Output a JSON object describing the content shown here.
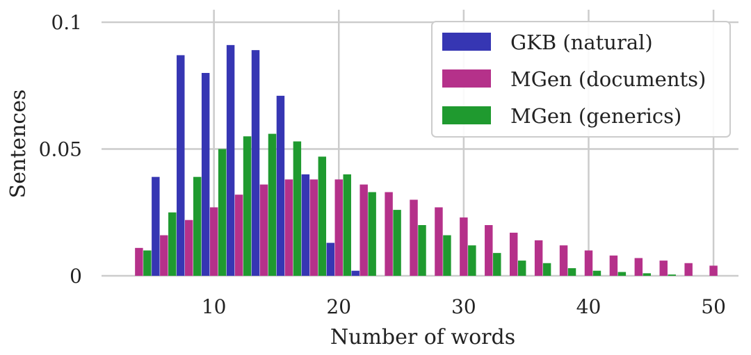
{
  "chart_data": {
    "type": "bar",
    "xlabel": "Number of words",
    "ylabel": "Sentences",
    "xlim": [
      1,
      52
    ],
    "ylim": [
      0,
      0.1
    ],
    "xticks": [
      10,
      20,
      30,
      40,
      50
    ],
    "xtick_labels": [
      "10",
      "20",
      "30",
      "40",
      "50"
    ],
    "yticks": [
      0,
      0.05,
      0.1
    ],
    "ytick_labels": [
      "0",
      "0.05",
      "0.1"
    ],
    "grid": true,
    "legend_position": "top-right",
    "bin_width": 2,
    "bin_starts": [
      3,
      5,
      7,
      9,
      11,
      13,
      15,
      17,
      19,
      21,
      23,
      25,
      27,
      29,
      31,
      33,
      35,
      37,
      39,
      41,
      43,
      45,
      47,
      49
    ],
    "series": [
      {
        "name": "GKB (natural)",
        "color": "#3636b3",
        "values": [
          0,
          0.039,
          0.087,
          0.08,
          0.091,
          0.089,
          0.071,
          0.04,
          0.013,
          0.002,
          0,
          0,
          0,
          0,
          0,
          0,
          0,
          0,
          0,
          0,
          0,
          0,
          0,
          0
        ]
      },
      {
        "name": "MGen (documents)",
        "color": "#b5318a",
        "values": [
          0.011,
          0.016,
          0.022,
          0.027,
          0.032,
          0.036,
          0.038,
          0.038,
          0.038,
          0.036,
          0.033,
          0.03,
          0.027,
          0.023,
          0.02,
          0.017,
          0.014,
          0.012,
          0.01,
          0.008,
          0.007,
          0.006,
          0.005,
          0.004
        ]
      },
      {
        "name": "MGen (generics)",
        "color": "#1f9a2f",
        "values": [
          0.01,
          0.025,
          0.039,
          0.05,
          0.055,
          0.056,
          0.053,
          0.047,
          0.04,
          0.033,
          0.026,
          0.02,
          0.016,
          0.012,
          0.009,
          0.006,
          0.005,
          0.003,
          0.002,
          0.0015,
          0.001,
          0.0005,
          0,
          0
        ]
      }
    ]
  }
}
